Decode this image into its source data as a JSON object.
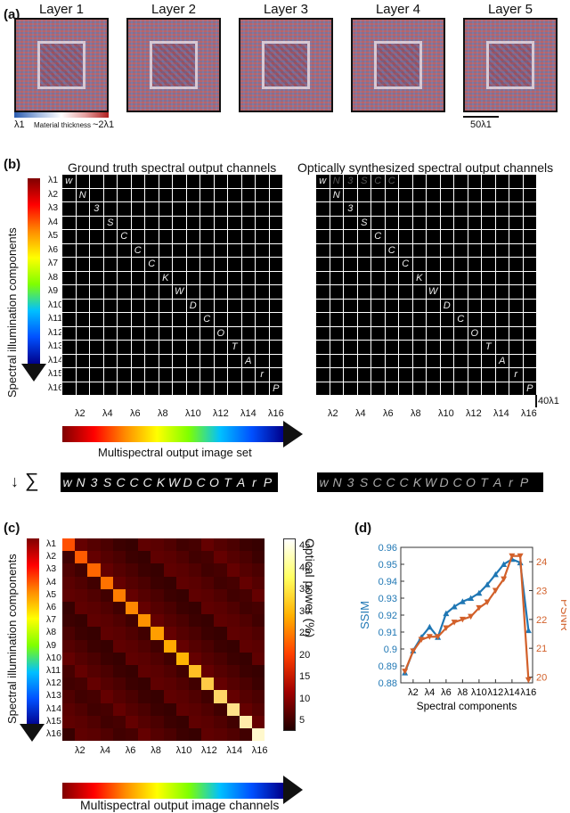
{
  "panel_a": {
    "letter": "(a)",
    "layers": [
      "Layer 1",
      "Layer 2",
      "Layer 3",
      "Layer 4",
      "Layer 5"
    ],
    "colorbar_left": "λ1",
    "colorbar_mid": "Material thickness",
    "colorbar_right": "~2λ1",
    "scalebar": "50λ1"
  },
  "panel_b": {
    "letter": "(b)",
    "title_left": "Ground truth spectral output channels",
    "title_right": "Optically synthesized spectral output channels",
    "y_axis": "Spectral illumination components",
    "x_axis": "Multispectral output image set",
    "row_labels": [
      "λ1",
      "λ2",
      "λ3",
      "λ4",
      "λ5",
      "λ6",
      "λ7",
      "λ8",
      "λ9",
      "λ10",
      "λ11",
      "λ12",
      "λ13",
      "λ14",
      "λ15",
      "λ16"
    ],
    "col_ticks": [
      "λ2",
      "λ4",
      "λ6",
      "λ8",
      "λ10",
      "λ12",
      "λ14",
      "λ16"
    ],
    "glyphs": [
      "w",
      "N",
      "3",
      "S",
      "C",
      "C",
      "C",
      "K",
      "W",
      "D",
      "C",
      "O",
      "T",
      "A",
      "r",
      "P"
    ],
    "scalebar": "40λ1",
    "sum_arrow": "↓",
    "sum_symbol": "∑"
  },
  "panel_c": {
    "letter": "(c)",
    "y_axis": "Spectral illumination components",
    "x_axis": "Multispectral output image channels",
    "colorbar_label": "Optical power (%)",
    "colorbar_ticks": [
      "45",
      "40",
      "35",
      "30",
      "25",
      "20",
      "15",
      "10",
      "5"
    ]
  },
  "panel_d": {
    "letter": "(d)",
    "chart_data": {
      "type": "line",
      "xlabel": "Spectral components",
      "ylabel": "SSIM",
      "y2label": "PSNR",
      "x": [
        1,
        2,
        3,
        4,
        5,
        6,
        7,
        8,
        9,
        10,
        11,
        12,
        13,
        14,
        15,
        16
      ],
      "x_ticks": [
        "λ2",
        "λ4",
        "λ6",
        "λ8",
        "λ10",
        "λ12",
        "λ14",
        "λ16"
      ],
      "ylim": [
        0.88,
        0.96
      ],
      "y_ticks": [
        "0.96",
        "0.95",
        "0.94",
        "0.93",
        "0.92",
        "0.91",
        "0.9",
        "0.89",
        "0.88"
      ],
      "y2lim": [
        19.8,
        24.5
      ],
      "y2_ticks": [
        "24",
        "23",
        "22",
        "21",
        "20"
      ],
      "series": [
        {
          "name": "SSIM",
          "axis": "left",
          "color": "#1f77b4",
          "values": [
            0.886,
            0.899,
            0.907,
            0.913,
            0.907,
            0.921,
            0.925,
            0.928,
            0.93,
            0.933,
            0.938,
            0.944,
            0.95,
            0.953,
            0.951,
            0.911
          ]
        },
        {
          "name": "PSNR",
          "axis": "right",
          "color": "#d2602a",
          "values": [
            20.2,
            20.9,
            21.3,
            21.4,
            21.4,
            21.7,
            21.9,
            22.0,
            22.1,
            22.4,
            22.6,
            23.0,
            23.4,
            24.2,
            24.2,
            19.9
          ]
        }
      ]
    }
  }
}
